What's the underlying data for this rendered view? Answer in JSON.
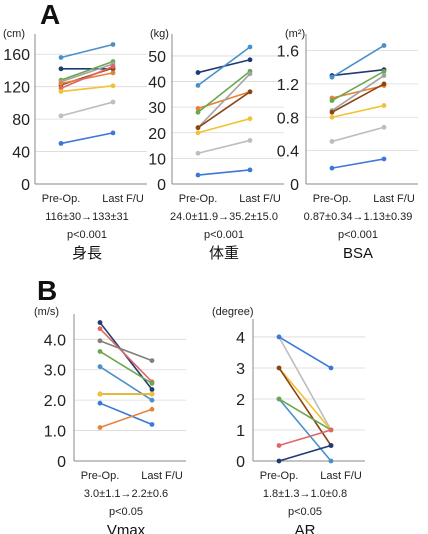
{
  "panels": [
    {
      "letter": "A"
    },
    {
      "letter": "B"
    }
  ],
  "chart_data": [
    {
      "type": "line",
      "panel": "A",
      "unit": "(cm)",
      "yticks": [
        0,
        40,
        80,
        120,
        160
      ],
      "ylim": [
        0,
        180
      ],
      "categories": [
        "Pre-Op.",
        "Last F/U"
      ],
      "stat": "116±30→133±31",
      "pvalue": "p<0.001",
      "title": "身長",
      "series": [
        {
          "color": "#4a90c8",
          "values": [
            156,
            172
          ]
        },
        {
          "color": "#1f3b73",
          "values": [
            142,
            142
          ]
        },
        {
          "color": "#6aa84f",
          "values": [
            128,
            151
          ]
        },
        {
          "color": "#a3a3a3",
          "values": [
            126,
            148
          ]
        },
        {
          "color": "#8b4513",
          "values": [
            122,
            143
          ]
        },
        {
          "color": "#e8823a",
          "values": [
            124,
            137
          ]
        },
        {
          "color": "#e06666",
          "values": [
            118,
            145
          ]
        },
        {
          "color": "#f1c232",
          "values": [
            114,
            121
          ]
        },
        {
          "color": "#bdbdbd",
          "values": [
            84,
            101
          ]
        },
        {
          "color": "#3c78d8",
          "values": [
            50,
            63
          ]
        }
      ]
    },
    {
      "type": "line",
      "panel": "A",
      "unit": "(kg)",
      "yticks": [
        0,
        10,
        20,
        30,
        40,
        50
      ],
      "ylim": [
        0,
        57
      ],
      "categories": [
        "Pre-Op.",
        "Last F/U"
      ],
      "stat": "24.0±11.9→35.2±15.0",
      "pvalue": "p<0.001",
      "title": "体重",
      "series": [
        {
          "color": "#1f3b73",
          "values": [
            43.5,
            48.5
          ]
        },
        {
          "color": "#4a90c8",
          "values": [
            38.5,
            53.5
          ]
        },
        {
          "color": "#e8823a",
          "values": [
            29.5,
            36
          ]
        },
        {
          "color": "#6aa84f",
          "values": [
            28,
            44
          ]
        },
        {
          "color": "#a3a3a3",
          "values": [
            22,
            43
          ]
        },
        {
          "color": "#8b4513",
          "values": [
            22,
            36
          ]
        },
        {
          "color": "#f1c232",
          "values": [
            20,
            25.5
          ]
        },
        {
          "color": "#bdbdbd",
          "values": [
            12,
            17
          ]
        },
        {
          "color": "#3c78d8",
          "values": [
            3.5,
            5.5
          ]
        }
      ]
    },
    {
      "type": "line",
      "panel": "A",
      "unit": "(m²)",
      "yticks": [
        "0",
        "0.4",
        "0.8",
        "1.2",
        "1.6"
      ],
      "ylim": [
        0,
        1.75
      ],
      "categories": [
        "Pre-Op.",
        "Last F/U"
      ],
      "stat": "0.87±0.34→1.13±0.39",
      "pvalue": "p<0.001",
      "title": "BSA",
      "series": [
        {
          "color": "#1f3b73",
          "values": [
            1.3,
            1.37
          ]
        },
        {
          "color": "#4a90c8",
          "values": [
            1.28,
            1.66
          ]
        },
        {
          "color": "#e8823a",
          "values": [
            1.03,
            1.18
          ]
        },
        {
          "color": "#6aa84f",
          "values": [
            1.0,
            1.35
          ]
        },
        {
          "color": "#a3a3a3",
          "values": [
            0.88,
            1.3
          ]
        },
        {
          "color": "#8b4513",
          "values": [
            0.86,
            1.2
          ]
        },
        {
          "color": "#f1c232",
          "values": [
            0.8,
            0.94
          ]
        },
        {
          "color": "#bdbdbd",
          "values": [
            0.51,
            0.68
          ]
        },
        {
          "color": "#3c78d8",
          "values": [
            0.19,
            0.3
          ]
        }
      ]
    },
    {
      "type": "line",
      "panel": "B",
      "unit": "(m/s)",
      "yticks": [
        "0",
        "1.0",
        "2.0",
        "3.0",
        "4.0"
      ],
      "ylim": [
        0,
        4.7
      ],
      "categories": [
        "Pre-Op.",
        "Last F/U"
      ],
      "stat": "3.0±1.1→2.2±0.6",
      "pvalue": "p<0.05",
      "title": "Vmax",
      "series": [
        {
          "color": "#1f3b73",
          "values": [
            4.55,
            2.35
          ]
        },
        {
          "color": "#e06666",
          "values": [
            4.35,
            2.6
          ]
        },
        {
          "color": "#7f7f7f",
          "values": [
            3.95,
            3.3
          ]
        },
        {
          "color": "#6aa84f",
          "values": [
            3.6,
            2.55
          ]
        },
        {
          "color": "#4a90c8",
          "values": [
            3.1,
            2.0
          ]
        },
        {
          "color": "#8b4513",
          "values": [
            2.2,
            2.2
          ]
        },
        {
          "color": "#f1c232",
          "values": [
            2.2,
            2.2
          ]
        },
        {
          "color": "#3c78d8",
          "values": [
            1.9,
            1.2
          ]
        },
        {
          "color": "#e8823a",
          "values": [
            1.1,
            1.7
          ]
        }
      ]
    },
    {
      "type": "line",
      "panel": "B",
      "unit": "(degree)",
      "yticks": [
        "0",
        "1",
        "2",
        "3",
        "4"
      ],
      "ylim": [
        0,
        4.45
      ],
      "categories": [
        "Pre-Op.",
        "Last F/U"
      ],
      "stat": "1.8±1.3→1.0±0.8",
      "pvalue": "p<0.05",
      "title": "AR",
      "series": [
        {
          "color": "#bdbdbd",
          "values": [
            4,
            1
          ]
        },
        {
          "color": "#3c78d8",
          "values": [
            4,
            3
          ]
        },
        {
          "color": "#f1c232",
          "values": [
            3,
            1
          ]
        },
        {
          "color": "#8b4513",
          "values": [
            3,
            0.5
          ]
        },
        {
          "color": "#4a90c8",
          "values": [
            2,
            0
          ]
        },
        {
          "color": "#6aa84f",
          "values": [
            2,
            1
          ]
        },
        {
          "color": "#e06666",
          "values": [
            0.5,
            1
          ]
        },
        {
          "color": "#1f3b73",
          "values": [
            0,
            0.5
          ]
        }
      ]
    }
  ]
}
